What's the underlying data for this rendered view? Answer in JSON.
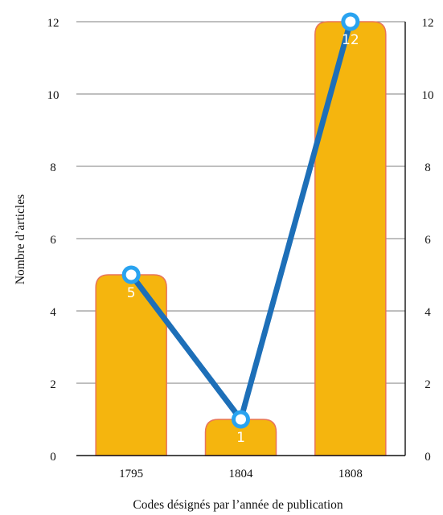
{
  "chart_data": {
    "type": "bar",
    "categories": [
      "1795",
      "1804",
      "1808"
    ],
    "series": [
      {
        "type": "bar",
        "values": [
          5,
          1,
          12
        ]
      },
      {
        "type": "line",
        "values": [
          5,
          1,
          12
        ]
      }
    ],
    "data_labels": [
      "5",
      "1",
      "12"
    ],
    "xlabel": "Codes désignés par l’année de publication",
    "ylabel": "Nombre d’articles",
    "ylim": [
      0,
      12
    ],
    "y_ticks": [
      "0",
      "2",
      "4",
      "6",
      "8",
      "10",
      "12"
    ],
    "y_ticks_right": [
      "0",
      "2",
      "4",
      "6",
      "8",
      "10",
      "12"
    ],
    "grid": true,
    "legend": "none",
    "colors": {
      "bar_fill": "#F5B50E",
      "bar_stroke": "#E8745A",
      "line": "#1D6FB8",
      "marker_fill": "#ffffff",
      "marker_stroke": "#29A3F0",
      "data_label": "#ffffff",
      "grid": "#555555"
    }
  }
}
